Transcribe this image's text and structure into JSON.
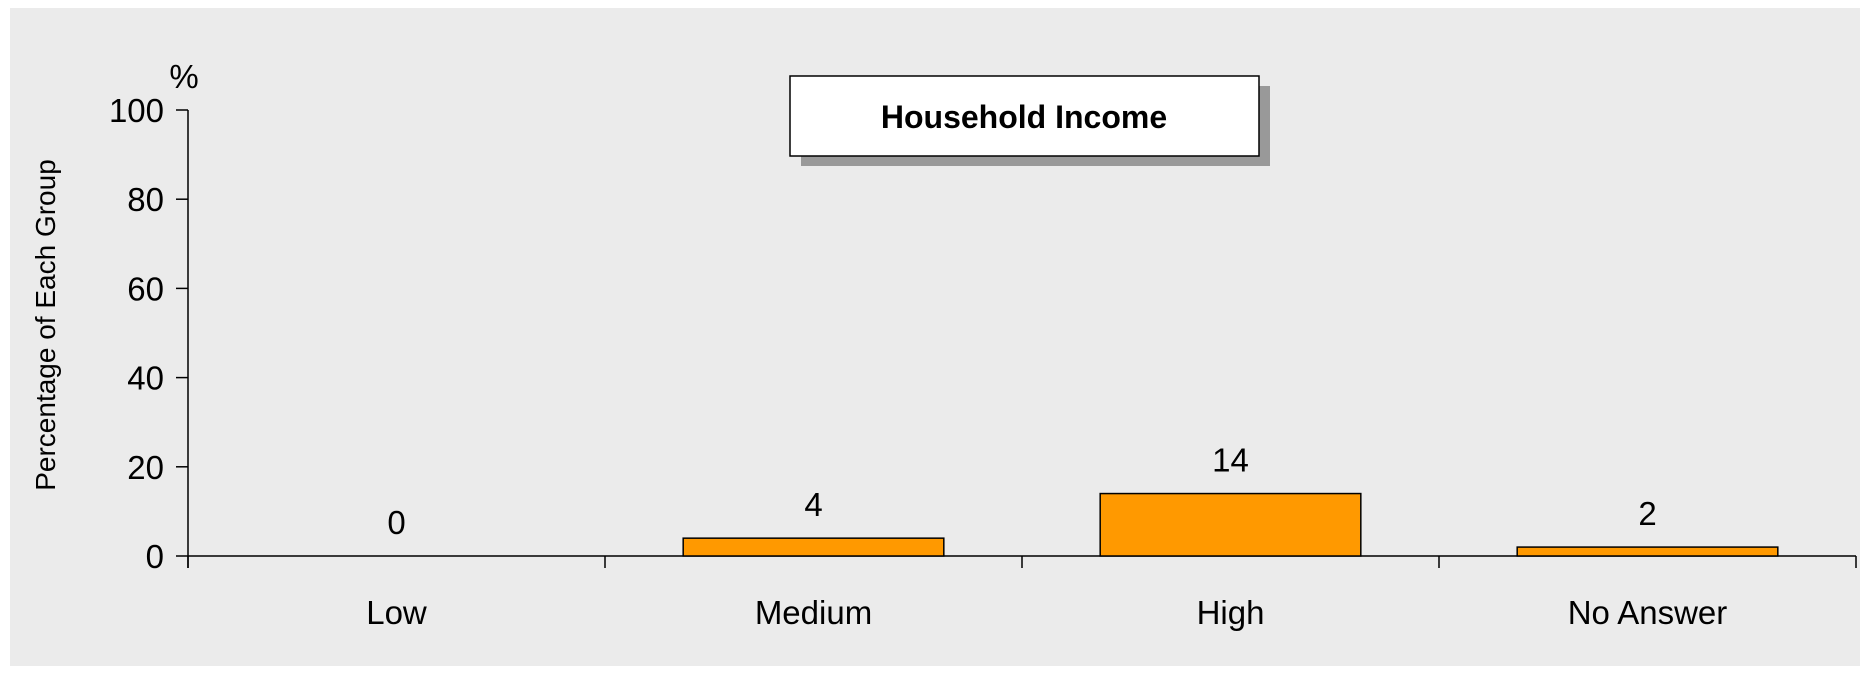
{
  "chart_data": {
    "type": "bar",
    "title": "Household Income",
    "ylabel": "Percentage of Each Group",
    "yunit": "%",
    "categories": [
      "Low",
      "Medium",
      "High",
      "No Answer"
    ],
    "values": [
      0,
      4,
      14,
      2
    ],
    "data_labels": [
      "0",
      "4",
      "14",
      "2"
    ],
    "yticks": [
      "0",
      "20",
      "40",
      "60",
      "80",
      "100"
    ],
    "ylim": [
      0,
      100
    ],
    "grid": false,
    "bar_color": "#ff9900",
    "background_color": "#ebebeb"
  }
}
